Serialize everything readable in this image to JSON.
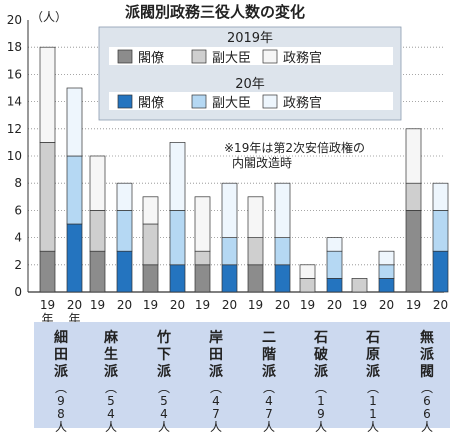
{
  "chart_data": {
    "type": "bar",
    "title": "派閥別政務三役人数の変化",
    "ylabel": "（人）",
    "ylim": [
      0,
      20
    ],
    "yticks": [
      0,
      2,
      4,
      6,
      8,
      10,
      12,
      14,
      16,
      18,
      20
    ],
    "stacked": true,
    "legend": {
      "groups": [
        {
          "title": "2019年",
          "items": [
            "閣僚",
            "副大臣",
            "政務官"
          ]
        },
        {
          "title": "20年",
          "items": [
            "閣僚",
            "副大臣",
            "政務官"
          ]
        }
      ],
      "placement": "top-right"
    },
    "note_lines": [
      "※19年は第2次安倍政権の",
      "内閣改造時"
    ],
    "year_labels": [
      "19",
      "20"
    ],
    "first_year_suffix": "年",
    "categories": [
      {
        "name": "細田派",
        "count": "98人",
        "y2019": [
          3,
          8,
          7
        ],
        "y2020": [
          5,
          5,
          5
        ]
      },
      {
        "name": "麻生派",
        "count": "54人",
        "y2019": [
          3,
          3,
          4
        ],
        "y2020": [
          3,
          3,
          2
        ]
      },
      {
        "name": "竹下派",
        "count": "54人",
        "y2019": [
          2,
          3,
          2
        ],
        "y2020": [
          2,
          4,
          5
        ]
      },
      {
        "name": "岸田派",
        "count": "47人",
        "y2019": [
          2,
          1,
          4
        ],
        "y2020": [
          2,
          2,
          4
        ]
      },
      {
        "name": "二階派",
        "count": "47人",
        "y2019": [
          2,
          2,
          3
        ],
        "y2020": [
          2,
          2,
          4
        ]
      },
      {
        "name": "石破派",
        "count": "19人",
        "y2019": [
          0,
          1,
          1
        ],
        "y2020": [
          1,
          2,
          1
        ]
      },
      {
        "name": "石原派",
        "count": "11人",
        "y2019": [
          0,
          1,
          0
        ],
        "y2020": [
          1,
          1,
          1
        ]
      },
      {
        "name": "無派閥",
        "count": "66人",
        "y2019": [
          6,
          2,
          4
        ],
        "y2020": [
          3,
          3,
          2
        ]
      }
    ],
    "colors": {
      "y2019": [
        "#8c8c8c",
        "#cfcfcf",
        "#f6f6f6"
      ],
      "y2020": [
        "#2474bf",
        "#b5d8f3",
        "#eef6fd"
      ],
      "label_bg": "#ccd9ef",
      "legend_bg": "#dde4ec",
      "grid": "#8a8a8a"
    }
  }
}
